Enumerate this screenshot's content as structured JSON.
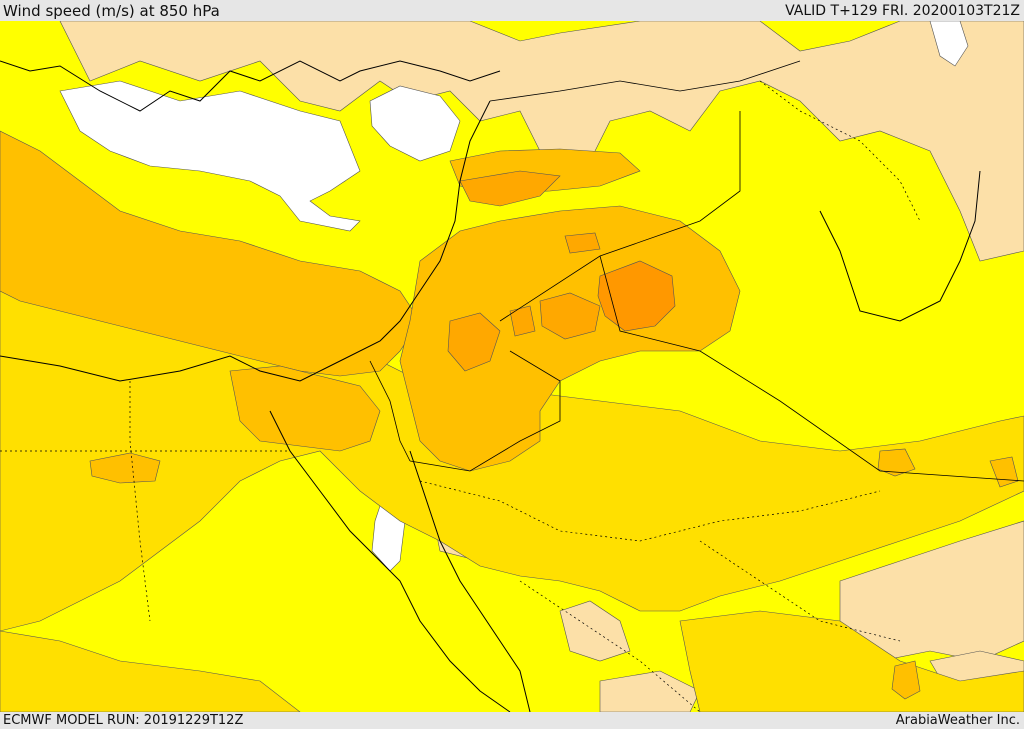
{
  "header": {
    "title": "Wind speed (m/s) at 850 hPa",
    "valid": "VALID T+129 FRI. 20200103T21Z"
  },
  "footer": {
    "model_run": "ECMWF MODEL RUN: 20191229T12Z",
    "credit": "ArabiaWeather Inc."
  },
  "map": {
    "colors": {
      "white": "#ffffff",
      "light": "#fce0a8",
      "yellow": "#ffff00",
      "gold": "#ffe000",
      "orange_light": "#ffc000",
      "orange": "#ffa800",
      "orange_dark": "#ff9800"
    }
  }
}
